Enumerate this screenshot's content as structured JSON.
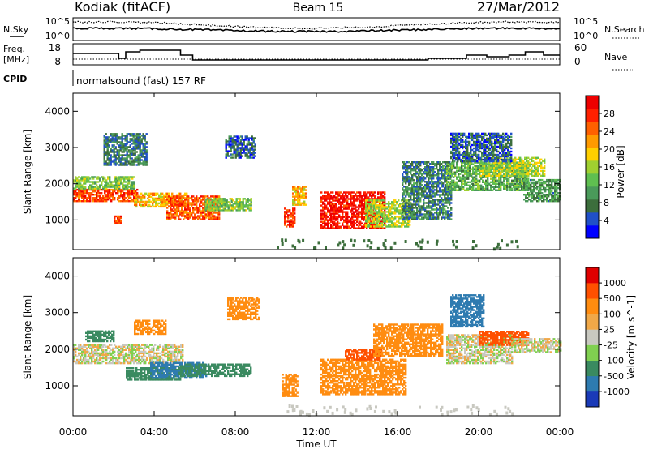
{
  "header": {
    "station": "Kodiak (fitACF)",
    "beam": "Beam 15",
    "date": "27/Mar/2012"
  },
  "noise_panel": {
    "left_label": "N.Sky",
    "right_label": "N.Search",
    "y_ticks": [
      "10^5",
      "10^0"
    ],
    "right_ticks": [
      "10^5",
      "10^0"
    ]
  },
  "freq_panel": {
    "left_label_1": "Freq.",
    "left_label_2": "[MHz]",
    "right_label": "Nave",
    "y_ticks": [
      "18",
      "8"
    ],
    "right_ticks": [
      "60",
      "0"
    ],
    "freq_steps": [
      {
        "t": 0.0,
        "f": 15
      },
      {
        "t": 2.25,
        "f": 12
      },
      {
        "t": 2.6,
        "f": 16
      },
      {
        "t": 3.3,
        "f": 17
      },
      {
        "t": 5.3,
        "f": 14
      },
      {
        "t": 5.9,
        "f": 11
      },
      {
        "t": 17.5,
        "f": 12
      },
      {
        "t": 19.4,
        "f": 14
      },
      {
        "t": 20.4,
        "f": 13
      },
      {
        "t": 21.5,
        "f": 14
      },
      {
        "t": 22.3,
        "f": 16
      },
      {
        "t": 23.2,
        "f": 14
      }
    ]
  },
  "cpid": {
    "label": "CPID",
    "text": "normalsound (fast) 157 RF"
  },
  "colors": {
    "power_scale": [
      "#0000ff",
      "#2050c8",
      "#3c6e3c",
      "#4a9a5a",
      "#5fbf50",
      "#a0d030",
      "#ffd000",
      "#ff9a00",
      "#ff6000",
      "#ff2000",
      "#ee0000"
    ],
    "velocity_scale": [
      "#e00000",
      "#ff5000",
      "#ff8c10",
      "#f0a848",
      "#c8c8c0",
      "#80d050",
      "#3a8a60",
      "#2e7bb0",
      "#1a3ab8"
    ]
  },
  "chart_data": [
    {
      "type": "heatmap",
      "panel": "power",
      "xlabel": "Time UT",
      "ylabel": "Slant Range [km]",
      "colorbar_label": "Power [dB]",
      "colorbar_ticks": [
        "28",
        "24",
        "20",
        "16",
        "12",
        "8",
        "4"
      ],
      "y_ticks": [
        "4000",
        "3000",
        "2000",
        "1000"
      ],
      "ylim": [
        180,
        4500
      ],
      "xlim": [
        0,
        24
      ],
      "regions": [
        {
          "t0": 0.0,
          "t1": 3.2,
          "r0": 1500,
          "r1": 1850,
          "v": 26
        },
        {
          "t0": 0.0,
          "t1": 3.0,
          "r0": 1850,
          "r1": 2200,
          "v": 14
        },
        {
          "t0": 2.0,
          "t1": 2.4,
          "r0": 900,
          "r1": 1100,
          "v": 26
        },
        {
          "t0": 3.0,
          "t1": 5.6,
          "r0": 1350,
          "r1": 1750,
          "v": 20
        },
        {
          "t0": 4.6,
          "t1": 7.2,
          "r0": 1000,
          "r1": 1650,
          "v": 25
        },
        {
          "t0": 6.5,
          "t1": 8.8,
          "r0": 1250,
          "r1": 1600,
          "v": 14
        },
        {
          "t0": 1.5,
          "t1": 3.6,
          "r0": 2500,
          "r1": 3400,
          "v": 8
        },
        {
          "t0": 7.5,
          "t1": 9.0,
          "r0": 2700,
          "r1": 3300,
          "v": 6
        },
        {
          "t0": 10.4,
          "t1": 10.9,
          "r0": 800,
          "r1": 1300,
          "v": 27
        },
        {
          "t0": 10.8,
          "t1": 11.5,
          "r0": 1400,
          "r1": 1900,
          "v": 20
        },
        {
          "t0": 12.2,
          "t1": 15.4,
          "r0": 750,
          "r1": 1750,
          "v": 29
        },
        {
          "t0": 14.4,
          "t1": 16.6,
          "r0": 800,
          "r1": 1550,
          "v": 16
        },
        {
          "t0": 16.2,
          "t1": 18.6,
          "r0": 1000,
          "r1": 2600,
          "v": 8
        },
        {
          "t0": 18.4,
          "t1": 22.4,
          "r0": 1800,
          "r1": 2600,
          "v": 12
        },
        {
          "t0": 20.0,
          "t1": 23.2,
          "r0": 2200,
          "r1": 2700,
          "v": 16
        },
        {
          "t0": 22.2,
          "t1": 24.0,
          "r0": 1500,
          "r1": 2100,
          "v": 10
        },
        {
          "t0": 18.6,
          "t1": 21.6,
          "r0": 2600,
          "r1": 3400,
          "v": 6
        }
      ]
    },
    {
      "type": "heatmap",
      "panel": "velocity",
      "xlabel": "Time UT",
      "ylabel": "Slant Range [km]",
      "colorbar_label": "Velocity [m s^-1]",
      "colorbar_ticks": [
        "1000",
        "500",
        "100",
        "25",
        "-25",
        "-100",
        "-500",
        "-1000"
      ],
      "y_ticks": [
        "4000",
        "3000",
        "2000",
        "1000"
      ],
      "ylim": [
        180,
        4500
      ],
      "xlim": [
        0,
        24
      ],
      "regions": [
        {
          "t0": 0.0,
          "t1": 5.4,
          "r0": 1600,
          "r1": 2100,
          "v": 0
        },
        {
          "t0": 2.6,
          "t1": 5.4,
          "r0": 1150,
          "r1": 1500,
          "v": 200
        },
        {
          "t0": 3.8,
          "t1": 6.6,
          "r0": 1200,
          "r1": 1650,
          "v": 800
        },
        {
          "t0": 5.2,
          "t1": 8.8,
          "r0": 1250,
          "r1": 1600,
          "v": 300
        },
        {
          "t0": 3.0,
          "t1": 4.6,
          "r0": 2400,
          "r1": 2800,
          "v": -300
        },
        {
          "t0": 0.6,
          "t1": 2.0,
          "r0": 2200,
          "r1": 2500,
          "v": 300
        },
        {
          "t0": 10.3,
          "t1": 11.1,
          "r0": 700,
          "r1": 1300,
          "v": -300
        },
        {
          "t0": 12.2,
          "t1": 16.4,
          "r0": 750,
          "r1": 1700,
          "v": -300
        },
        {
          "t0": 13.4,
          "t1": 15.2,
          "r0": 1700,
          "r1": 2000,
          "v": -600
        },
        {
          "t0": 14.8,
          "t1": 18.2,
          "r0": 1800,
          "r1": 2700,
          "v": -200
        },
        {
          "t0": 18.4,
          "t1": 21.6,
          "r0": 1600,
          "r1": 2400,
          "v": 0
        },
        {
          "t0": 20.0,
          "t1": 22.4,
          "r0": 2100,
          "r1": 2500,
          "v": -600
        },
        {
          "t0": 21.6,
          "t1": 24.0,
          "r0": 1900,
          "r1": 2300,
          "v": 0
        },
        {
          "t0": 18.6,
          "t1": 20.2,
          "r0": 2600,
          "r1": 3500,
          "v": 700
        },
        {
          "t0": 7.6,
          "t1": 9.2,
          "r0": 2800,
          "r1": 3400,
          "v": -200
        }
      ]
    }
  ],
  "time_axis": {
    "ticks": [
      "00:00",
      "04:00",
      "08:00",
      "12:00",
      "16:00",
      "20:00",
      "00:00"
    ],
    "label": "Time UT"
  }
}
